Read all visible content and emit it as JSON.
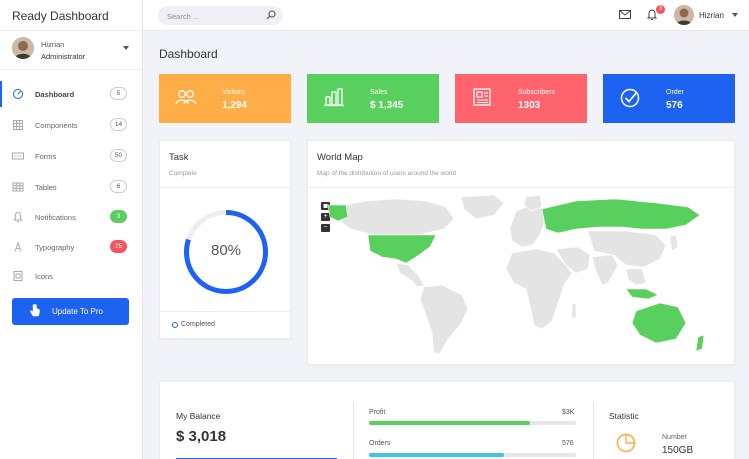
{
  "brand": "Ready Dashboard",
  "search": {
    "placeholder": "Search ..."
  },
  "topbar": {
    "notification_count": "3",
    "username": "Hizrian"
  },
  "sidebar": {
    "user": {
      "name": "Hizrian",
      "role": "Administrator"
    },
    "items": [
      {
        "label": "Dashboard",
        "count": "5",
        "icon": "dashboard-icon"
      },
      {
        "label": "Components",
        "count": "14",
        "icon": "components-icon"
      },
      {
        "label": "Forms",
        "count": "50",
        "icon": "forms-icon"
      },
      {
        "label": "Tables",
        "count": "6",
        "icon": "tables-icon"
      },
      {
        "label": "Notifications",
        "count": "3",
        "icon": "bell-icon"
      },
      {
        "label": "Typography",
        "count": "25",
        "icon": "typography-icon"
      },
      {
        "label": "Icons",
        "count": "",
        "icon": "icons-icon"
      }
    ],
    "cta": "Update To Pro"
  },
  "page": {
    "title": "Dashboard"
  },
  "stats": [
    {
      "label": "Visitors",
      "value": "1,294",
      "color": "#ffad46",
      "icon": "users-icon"
    },
    {
      "label": "Sales",
      "value": "$ 1,345",
      "color": "#59d05d",
      "icon": "bar-chart-icon"
    },
    {
      "label": "Subscribers",
      "value": "1303",
      "color": "#ff646d",
      "icon": "newspaper-icon"
    },
    {
      "label": "Order",
      "value": "576",
      "color": "#1d62f0",
      "icon": "check-circle-icon"
    }
  ],
  "task": {
    "title": "Task",
    "subtitle": "Complete",
    "percent_label": "80%",
    "progress": 0.8,
    "legend": "Completed"
  },
  "world_map": {
    "title": "World Map",
    "subtitle": "Map of the distribution of users around the world",
    "controls": [
      "+",
      "−"
    ]
  },
  "balance": {
    "title": "My Balance",
    "value": "$ 3,018"
  },
  "progress": [
    {
      "label": "Profit",
      "value": "$3K",
      "fraction": 0.78,
      "color": "#59d05d"
    },
    {
      "label": "Orders",
      "value": "576",
      "fraction": 0.65,
      "color": "#3ec5e0"
    }
  ],
  "statistic": {
    "title": "Statistic",
    "number_label": "Number",
    "number_value": "150GB"
  },
  "colors": {
    "accent": "#1d62f0",
    "green": "#59d05d",
    "map_highlight": "#59d05d",
    "map_base": "#e4e4e4"
  }
}
